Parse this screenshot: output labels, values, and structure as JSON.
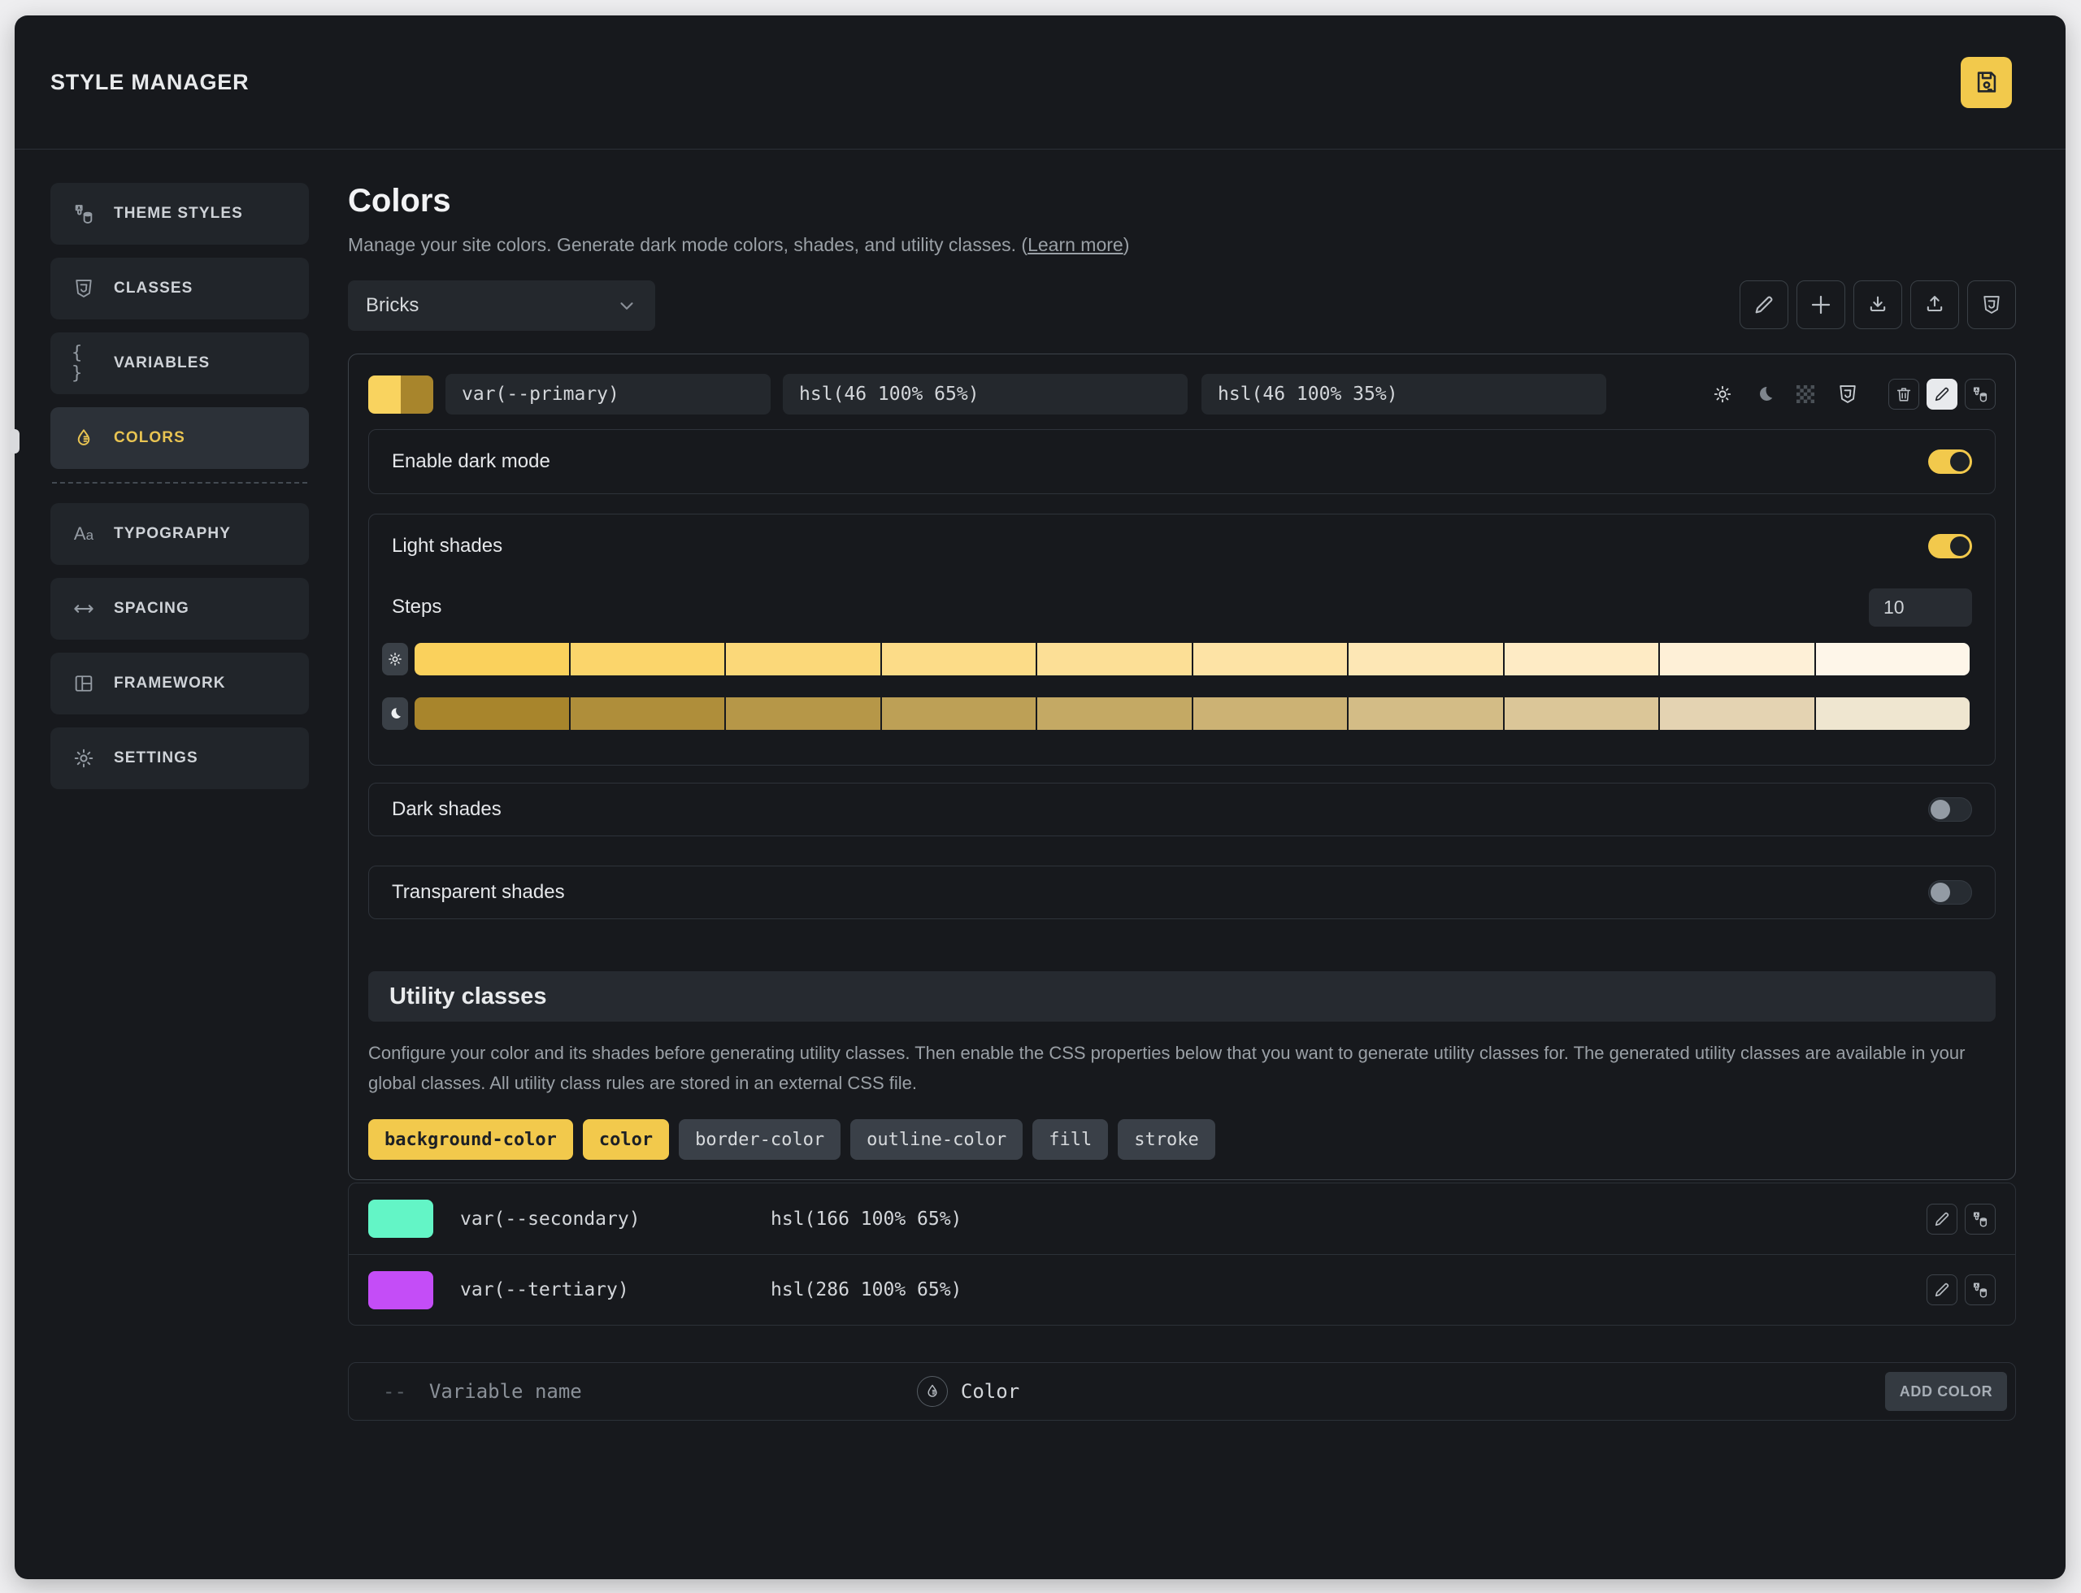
{
  "header": {
    "title": "STYLE MANAGER"
  },
  "sidebar": {
    "items": [
      {
        "label": "THEME STYLES",
        "icon": "theme-styles",
        "active": false
      },
      {
        "label": "CLASSES",
        "icon": "shield3",
        "active": false
      },
      {
        "label": "VARIABLES",
        "icon": "braces",
        "active": false
      },
      {
        "label": "COLORS",
        "icon": "droplet",
        "active": true,
        "divider_after": true
      },
      {
        "label": "TYPOGRAPHY",
        "icon": "typography",
        "active": false
      },
      {
        "label": "SPACING",
        "icon": "spacing",
        "active": false
      },
      {
        "label": "FRAMEWORK",
        "icon": "framework",
        "active": false
      },
      {
        "label": "SETTINGS",
        "icon": "gear",
        "active": false
      }
    ]
  },
  "page": {
    "title": "Colors",
    "description": "Manage your site colors. Generate dark mode colors, shades, and utility classes. (",
    "learn_more": "Learn more",
    "description_close": ")"
  },
  "theme_select": {
    "value": "Bricks"
  },
  "primary_color": {
    "variable": "var(--primary)",
    "light_value": "hsl(46 100% 65%)",
    "dark_value": "hsl(46 100% 35%)",
    "swatch_light": "#f9d35f",
    "swatch_dark": "#a8852c"
  },
  "settings": {
    "enable_dark_mode_label": "Enable dark mode",
    "enable_dark_mode_on": true,
    "light_shades_label": "Light shades",
    "light_shades_on": true,
    "steps_label": "Steps",
    "steps_value": "10",
    "dark_shades_label": "Dark shades",
    "dark_shades_on": false,
    "transparent_shades_label": "Transparent shades",
    "transparent_shades_on": false
  },
  "shades": {
    "light_row": [
      "#fad15c",
      "#fbd56b",
      "#fbd879",
      "#fcdc88",
      "#fcdf96",
      "#fde3a5",
      "#fde7b5",
      "#feebc5",
      "#fef0d7",
      "#fef6e9"
    ],
    "dark_row": [
      "#a8852c",
      "#af8e3a",
      "#b69748",
      "#bda056",
      "#c4a964",
      "#ccb274",
      "#d3bc86",
      "#dbc698",
      "#e4d3b2",
      "#efe6d0"
    ]
  },
  "utility": {
    "title": "Utility classes",
    "description": "Configure your color and its shades before generating utility classes. Then enable the CSS properties below that you want to generate utility classes for. The generated utility classes are available in your global classes. All utility class rules are stored in an external CSS file.",
    "chips": [
      {
        "label": "background-color",
        "active": true
      },
      {
        "label": "color",
        "active": true
      },
      {
        "label": "border-color",
        "active": false
      },
      {
        "label": "outline-color",
        "active": false
      },
      {
        "label": "fill",
        "active": false
      },
      {
        "label": "stroke",
        "active": false
      }
    ]
  },
  "colors_list": [
    {
      "variable": "var(--secondary)",
      "value": "hsl(166 100% 65%)",
      "swatch": "#63f5c6"
    },
    {
      "variable": "var(--tertiary)",
      "value": "hsl(286 100% 65%)",
      "swatch": "#c44df7"
    }
  ],
  "add_color": {
    "prefix": "--",
    "variable_placeholder": "Variable name",
    "color_placeholder": "Color",
    "button_label": "ADD COLOR"
  },
  "accent_color": "#f2c94c"
}
